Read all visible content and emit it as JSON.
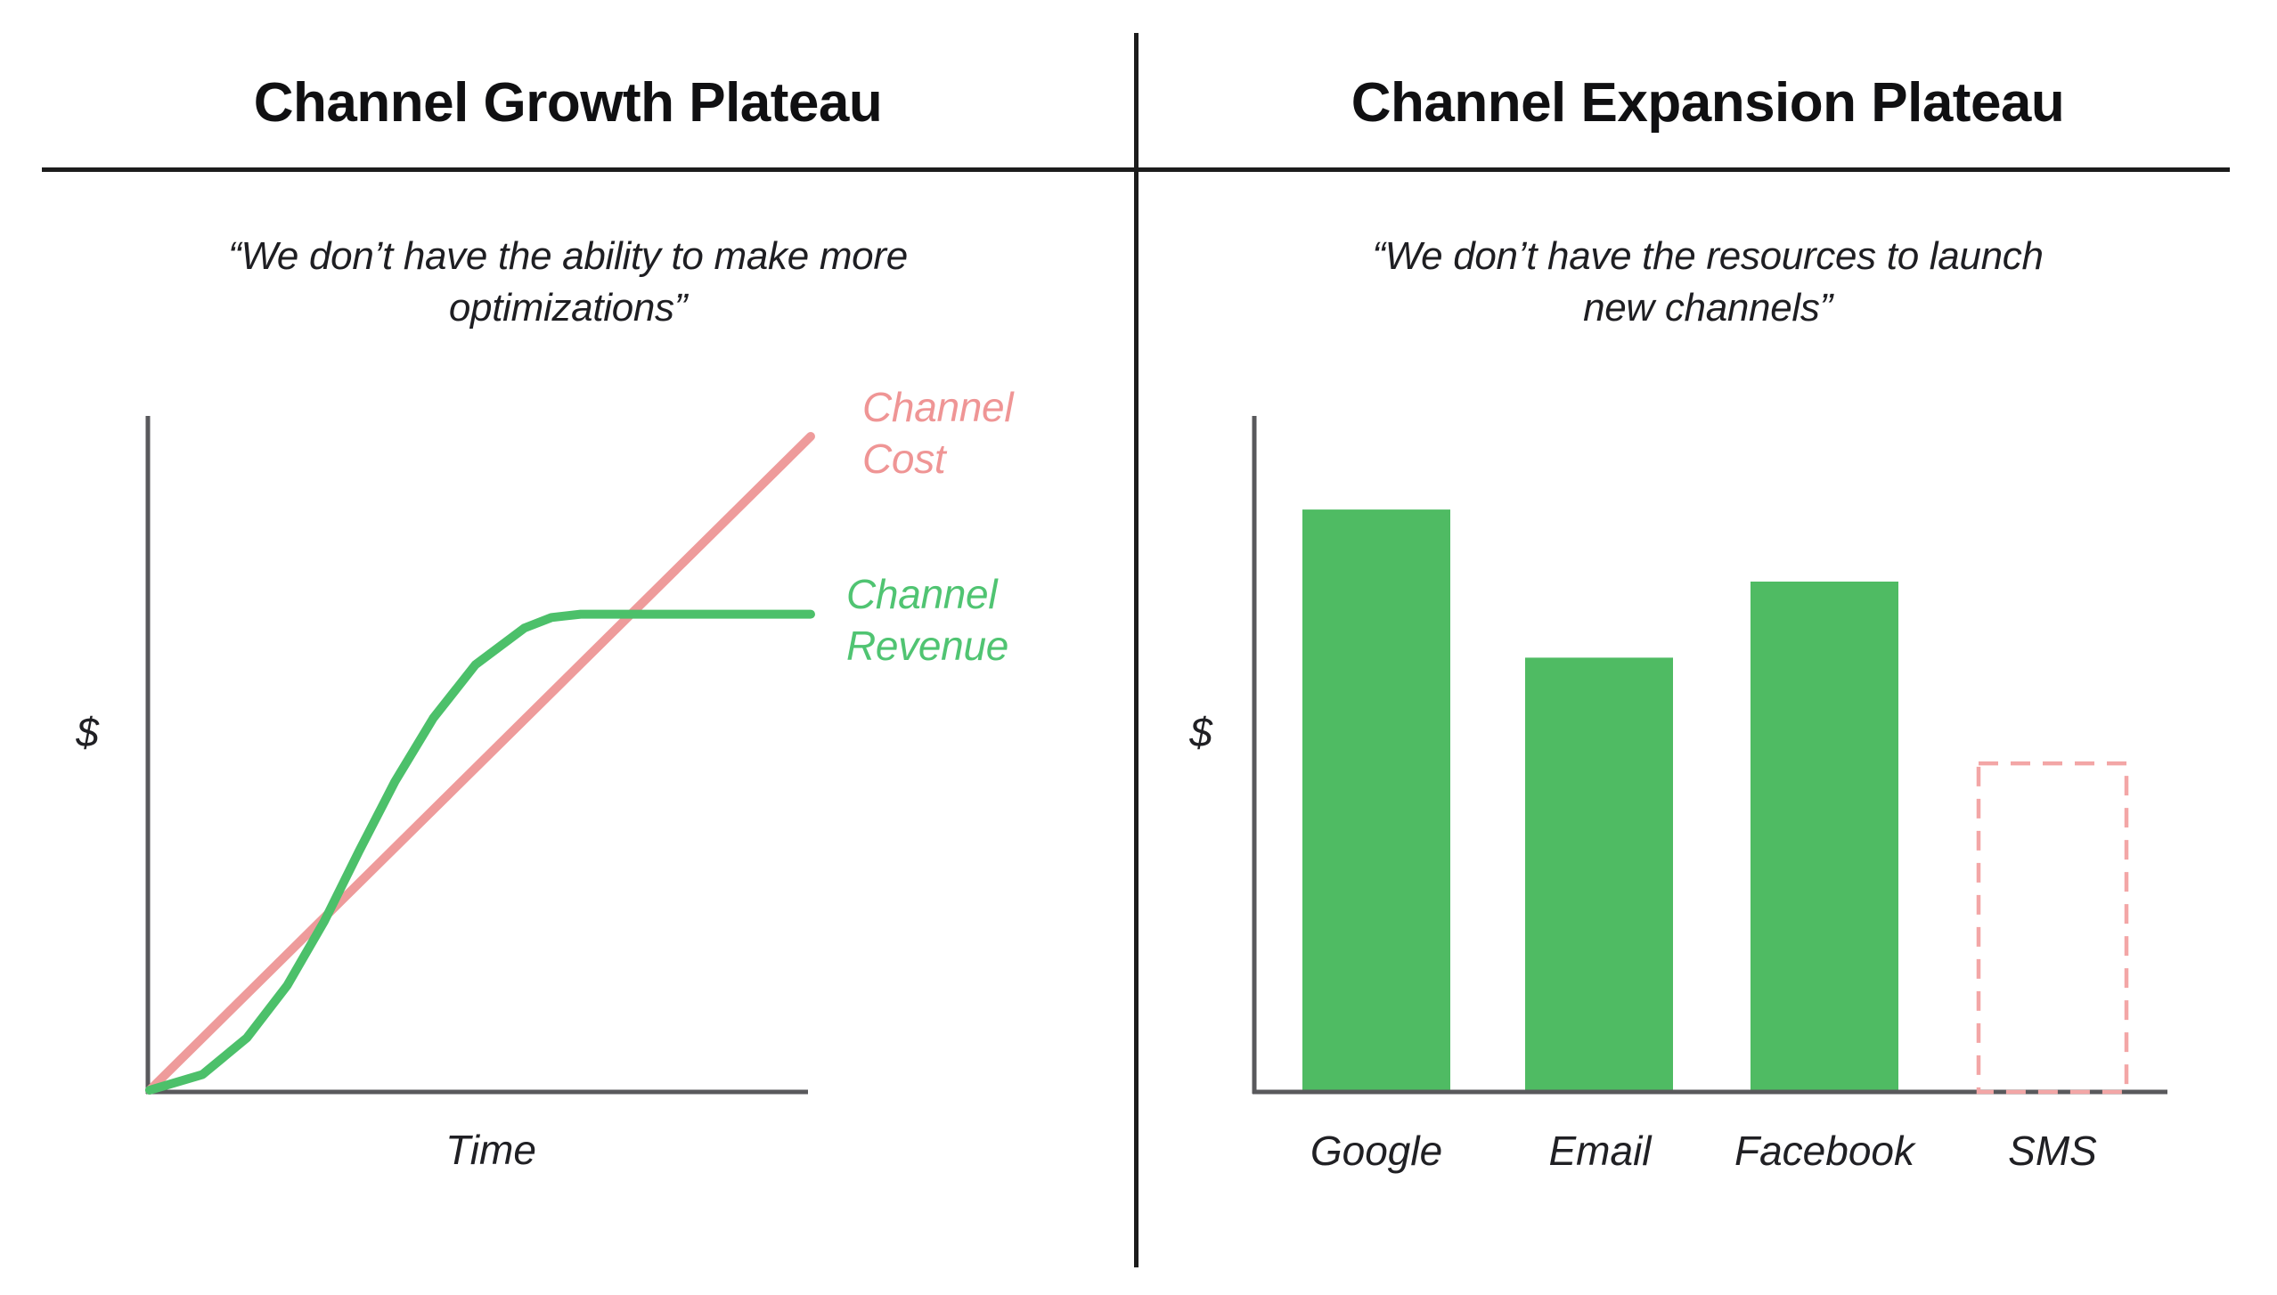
{
  "left_panel": {
    "title": "Channel Growth Plateau",
    "quote": "“We don’t have the ability to make more\noptimizations”",
    "y_axis_label": "$",
    "x_axis_label": "Time",
    "legend": {
      "cost_label": "Channel\nCost",
      "revenue_label": "Channel\nRevenue"
    }
  },
  "right_panel": {
    "title": "Channel Expansion Plateau",
    "quote": "“We don’t have the resources to launch\nnew channels”",
    "y_axis_label": "$",
    "categories": [
      "Google",
      "Email",
      "Facebook",
      "SMS"
    ]
  },
  "colors": {
    "bar_green": "#4FBB63",
    "line_green": "#4CC06A",
    "legend_green_text": "#50C472",
    "line_pink": "#EE9B9B",
    "legend_pink_text": "#EF9595",
    "dashed_pink": "#F3A6A6",
    "axis_gray": "#59595c",
    "rule_black": "#1c1c1c"
  },
  "chart_data": [
    {
      "type": "line",
      "title": "Channel Growth Plateau",
      "subtitle": "“We don’t have the ability to make more optimizations”",
      "xlabel": "Time",
      "ylabel": "$",
      "axes": {
        "x_range": [
          0,
          1
        ],
        "y_range": [
          0,
          1
        ],
        "ticks": "none",
        "grid": false
      },
      "legend_position": "right",
      "series": [
        {
          "name": "Channel Cost",
          "color": "#EE9B9B",
          "shape": "straight-line",
          "x": [
            0,
            1.0
          ],
          "y": [
            0,
            1.0
          ]
        },
        {
          "name": "Channel Revenue",
          "color": "#4CC06A",
          "shape": "s-curve-plateau",
          "x": [
            0,
            0.08,
            0.147,
            0.208,
            0.264,
            0.317,
            0.371,
            0.429,
            0.493,
            0.567,
            0.608,
            0.652,
            0.801,
            1.0
          ],
          "y": [
            0,
            0.024,
            0.08,
            0.16,
            0.258,
            0.366,
            0.472,
            0.569,
            0.651,
            0.707,
            0.723,
            0.728,
            0.728,
            0.728
          ]
        }
      ]
    },
    {
      "type": "bar",
      "title": "Channel Expansion Plateau",
      "subtitle": "“We don’t have the resources to launch new channels”",
      "xlabel": "",
      "ylabel": "$",
      "units": "relative height (no numeric scale shown)",
      "categories": [
        "Google",
        "Email",
        "Facebook",
        "SMS"
      ],
      "values": [
        0.865,
        0.645,
        0.758,
        0.488
      ],
      "bar_styles": [
        "solid",
        "solid",
        "solid",
        "dashed-outline-empty"
      ],
      "ylim": [
        0,
        1
      ],
      "grid": false
    }
  ]
}
